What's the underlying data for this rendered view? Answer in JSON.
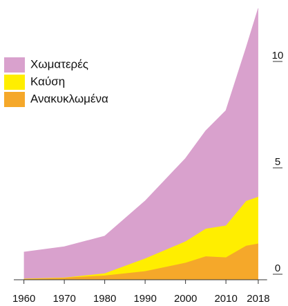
{
  "chart_data": {
    "type": "stacked_area",
    "x": [
      1960,
      1970,
      1980,
      1990,
      2000,
      2005,
      2010,
      2015,
      2018
    ],
    "series": [
      {
        "name": "Ανακυκλωμένα",
        "color": "#f5a82a",
        "values": [
          0.05,
          0.1,
          0.2,
          0.4,
          0.8,
          1.1,
          1.05,
          1.6,
          1.7
        ]
      },
      {
        "name": "Καύση",
        "color": "#ffee00",
        "values": [
          0,
          0,
          0.1,
          0.6,
          1.0,
          1.3,
          1.5,
          2.1,
          2.2
        ]
      },
      {
        "name": "Χωματερές",
        "color": "#d9a1cd",
        "values": [
          1.25,
          1.45,
          1.75,
          2.7,
          3.9,
          4.6,
          5.4,
          7.2,
          8.85
        ]
      }
    ],
    "legend_order": [
      2,
      1,
      0
    ],
    "xlim": [
      1957.5,
      2019.5
    ],
    "xticks": [
      1960,
      1970,
      1980,
      1990,
      2000,
      2010,
      2018
    ],
    "ylim": [
      0,
      13
    ],
    "yticks": [
      0,
      5,
      10
    ]
  }
}
